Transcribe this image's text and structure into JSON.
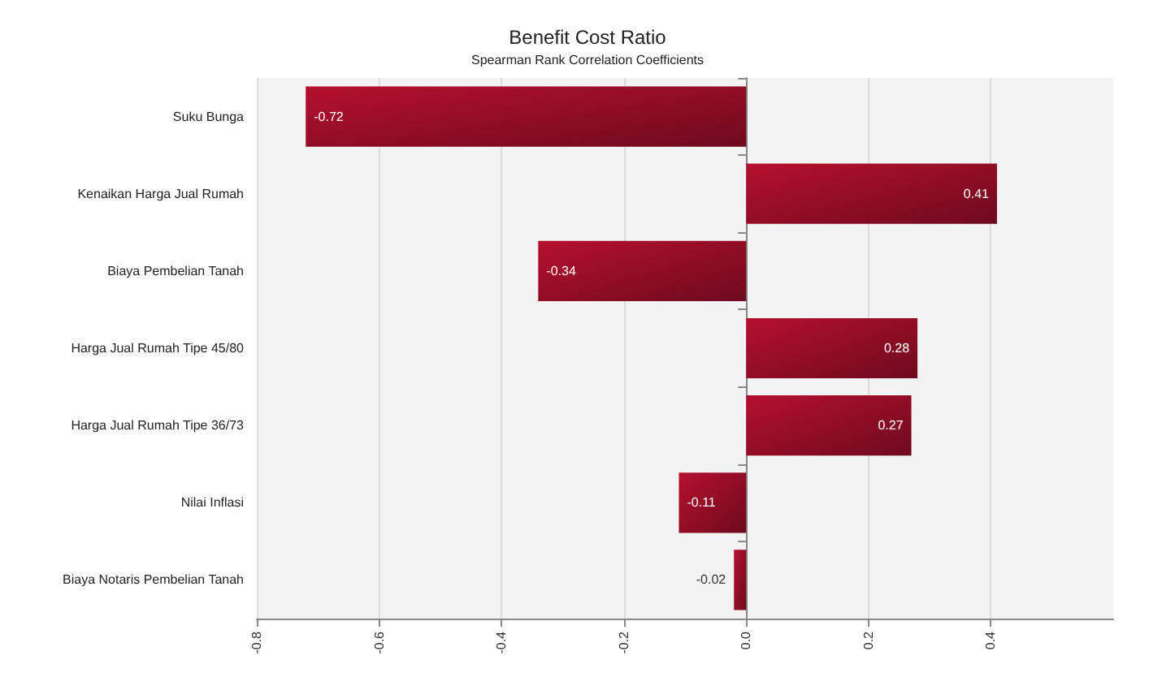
{
  "chart_data": {
    "type": "bar",
    "orientation": "horizontal",
    "title": "Benefit Cost Ratio",
    "subtitle": "Spearman Rank Correlation Coefficients",
    "categories": [
      "Suku Bunga",
      "Kenaikan Harga Jual Rumah",
      "Biaya Pembelian Tanah",
      "Harga Jual Rumah Tipe 45/80",
      "Harga Jual Rumah Tipe 36/73",
      "Nilai Inflasi",
      "Biaya Notaris Pembelian Tanah"
    ],
    "values": [
      -0.72,
      0.41,
      -0.34,
      0.28,
      0.27,
      -0.11,
      -0.02
    ],
    "color": "#b5102e",
    "data_labels": true,
    "grid": "x",
    "xlim": [
      -0.8,
      0.6
    ],
    "xticks": [
      -0.8,
      -0.6,
      -0.4,
      -0.2,
      {
        "value": 0,
        "label": "0.0"
      },
      0.2,
      0.4
    ]
  }
}
